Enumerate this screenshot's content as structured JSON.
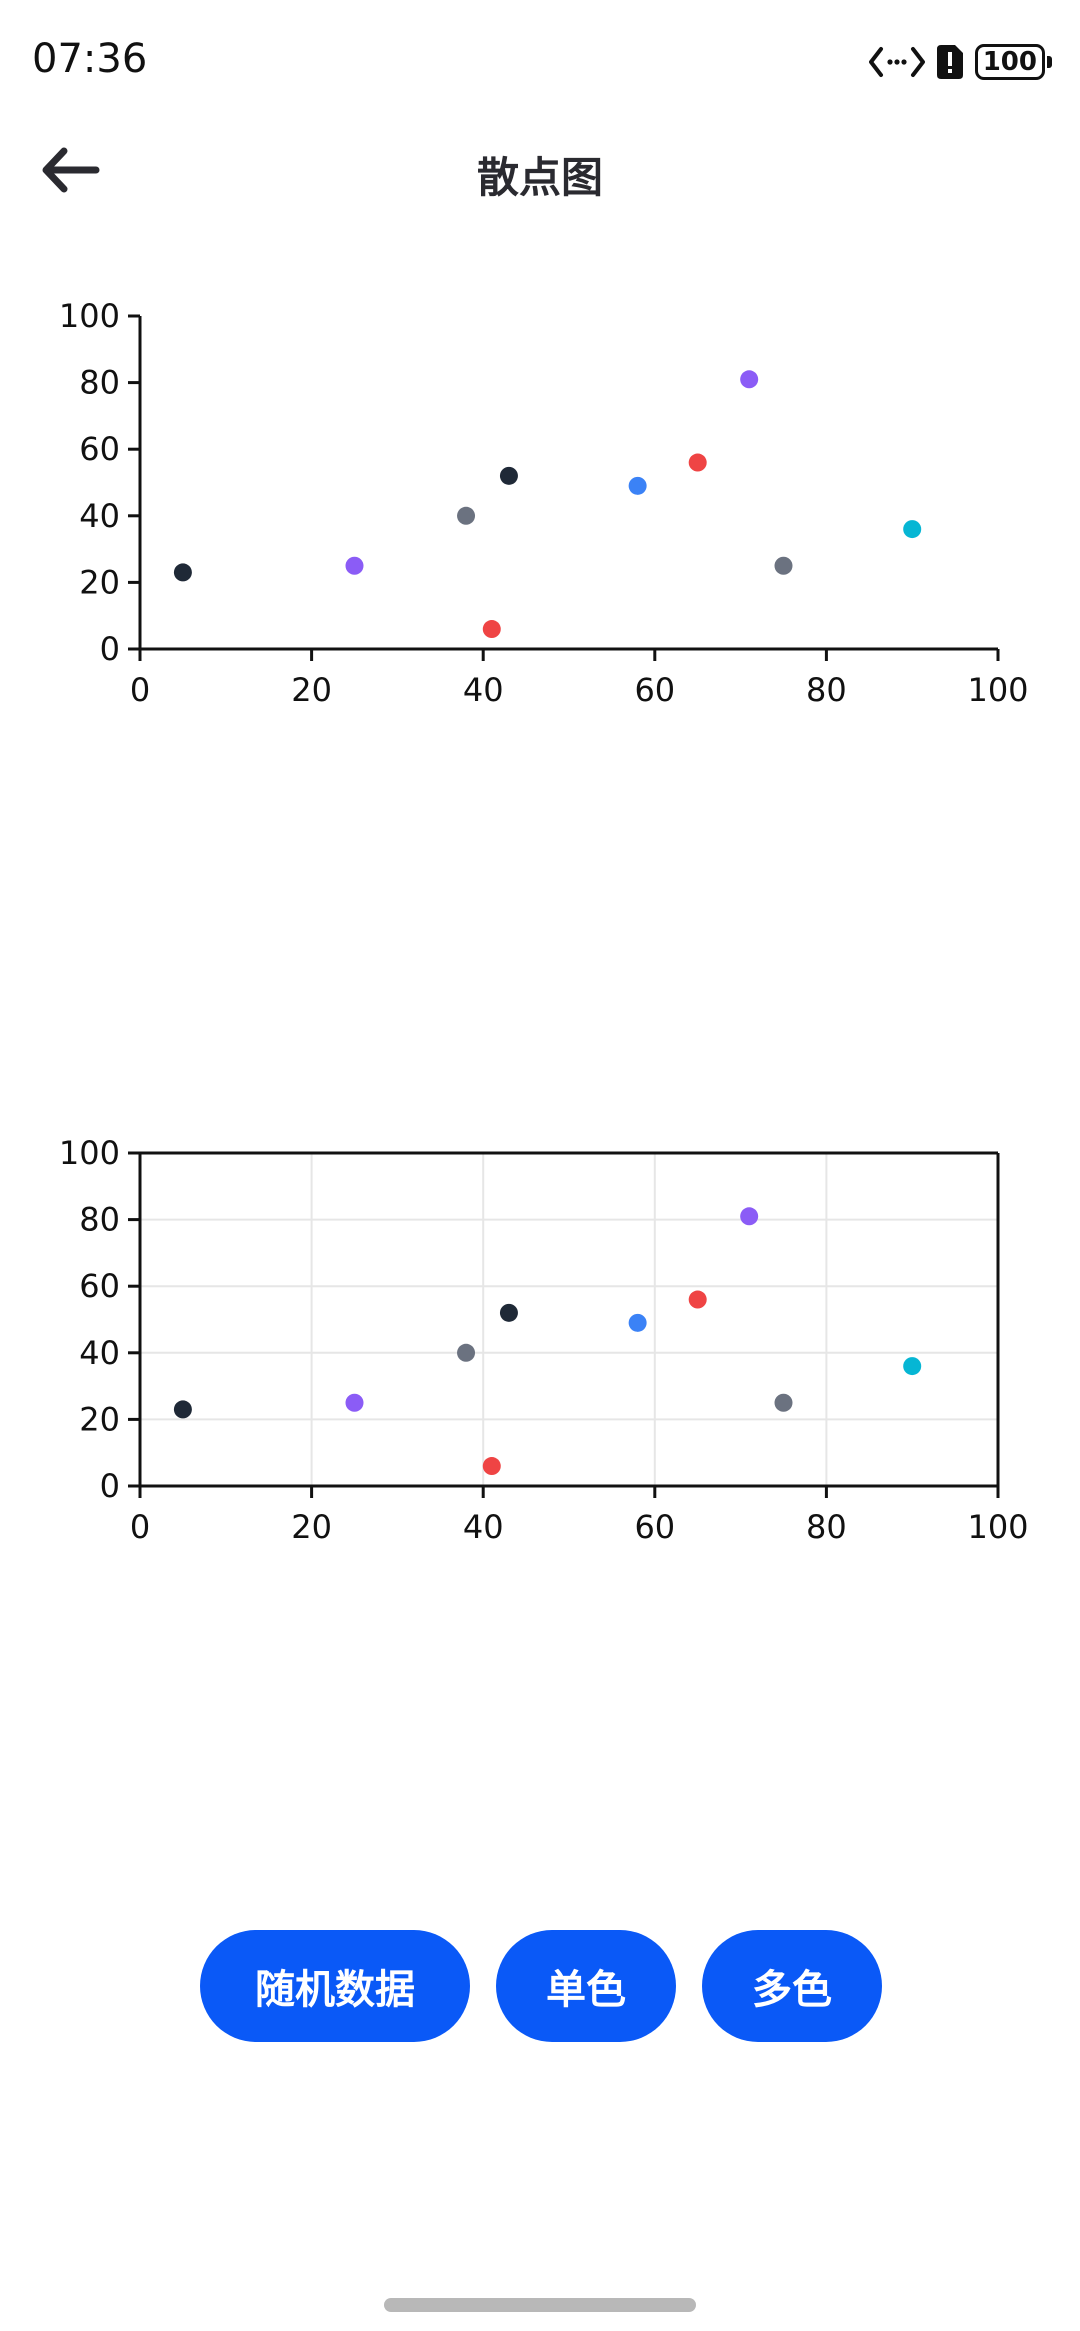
{
  "status_bar": {
    "time": "07:36",
    "battery": "100"
  },
  "header": {
    "title": "散点图"
  },
  "buttons": {
    "random": "随机数据",
    "single": "单色",
    "multi": "多色"
  },
  "colors": {
    "accent": "#0a59f7",
    "axis": "#111111",
    "grid": "#e6e6e6"
  },
  "chart_data": [
    {
      "type": "scatter",
      "grid": false,
      "xlim": [
        0,
        100
      ],
      "ylim": [
        0,
        100
      ],
      "xticks": [
        "0",
        "20",
        "40",
        "60",
        "80",
        "100"
      ],
      "yticks": [
        "0",
        "20",
        "40",
        "60",
        "80",
        "100"
      ],
      "points": [
        {
          "x": 5,
          "y": 23,
          "color": "#1f2937"
        },
        {
          "x": 25,
          "y": 25,
          "color": "#8b5cf6"
        },
        {
          "x": 38,
          "y": 40,
          "color": "#6b7280"
        },
        {
          "x": 41,
          "y": 6,
          "color": "#ef4444"
        },
        {
          "x": 43,
          "y": 52,
          "color": "#1f2937"
        },
        {
          "x": 58,
          "y": 49,
          "color": "#3b82f6"
        },
        {
          "x": 65,
          "y": 56,
          "color": "#ef4444"
        },
        {
          "x": 71,
          "y": 81,
          "color": "#8b5cf6"
        },
        {
          "x": 75,
          "y": 25,
          "color": "#6b7280"
        },
        {
          "x": 90,
          "y": 36,
          "color": "#06b6d4"
        }
      ]
    },
    {
      "type": "scatter",
      "grid": true,
      "xlim": [
        0,
        100
      ],
      "ylim": [
        0,
        100
      ],
      "xticks": [
        "0",
        "20",
        "40",
        "60",
        "80",
        "100"
      ],
      "yticks": [
        "0",
        "20",
        "40",
        "60",
        "80",
        "100"
      ],
      "points": [
        {
          "x": 5,
          "y": 23,
          "color": "#1f2937"
        },
        {
          "x": 25,
          "y": 25,
          "color": "#8b5cf6"
        },
        {
          "x": 38,
          "y": 40,
          "color": "#6b7280"
        },
        {
          "x": 41,
          "y": 6,
          "color": "#ef4444"
        },
        {
          "x": 43,
          "y": 52,
          "color": "#1f2937"
        },
        {
          "x": 58,
          "y": 49,
          "color": "#3b82f6"
        },
        {
          "x": 65,
          "y": 56,
          "color": "#ef4444"
        },
        {
          "x": 71,
          "y": 81,
          "color": "#8b5cf6"
        },
        {
          "x": 75,
          "y": 25,
          "color": "#6b7280"
        },
        {
          "x": 90,
          "y": 36,
          "color": "#06b6d4"
        }
      ]
    }
  ]
}
